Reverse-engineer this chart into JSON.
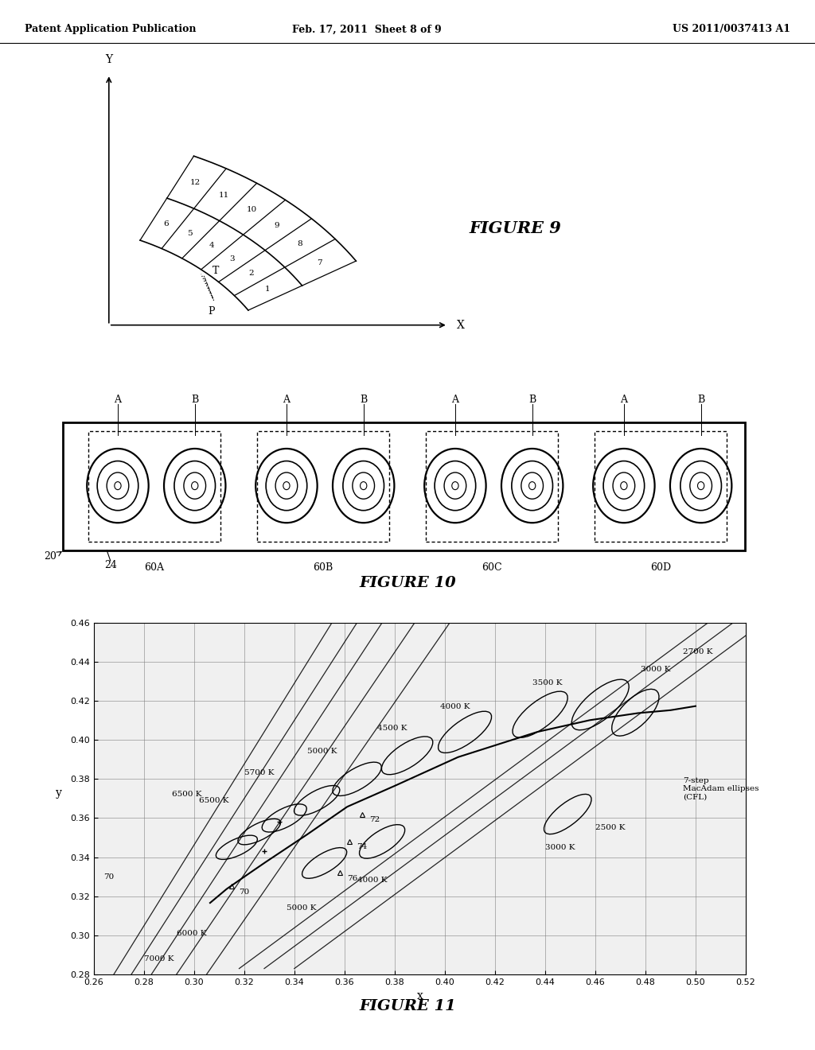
{
  "header_left": "Patent Application Publication",
  "header_mid": "Feb. 17, 2011  Sheet 8 of 9",
  "header_right": "US 2011/0037413 A1",
  "fig9_title": "FIGURE 9",
  "fig10_title": "FIGURE 10",
  "fig11_title": "FIGURE 11",
  "fig11_xlabel": "x",
  "fig11_ylabel": "y",
  "fig11_xlim": [
    0.26,
    0.52
  ],
  "fig11_ylim": [
    0.28,
    0.46
  ],
  "fig11_xticks": [
    0.26,
    0.28,
    0.3,
    0.32,
    0.34,
    0.36,
    0.38,
    0.4,
    0.42,
    0.44,
    0.46,
    0.48,
    0.5,
    0.52
  ],
  "fig11_yticks": [
    0.28,
    0.3,
    0.32,
    0.34,
    0.36,
    0.38,
    0.4,
    0.42,
    0.44,
    0.46
  ],
  "background_color": "#ffffff",
  "text_color": "#000000"
}
